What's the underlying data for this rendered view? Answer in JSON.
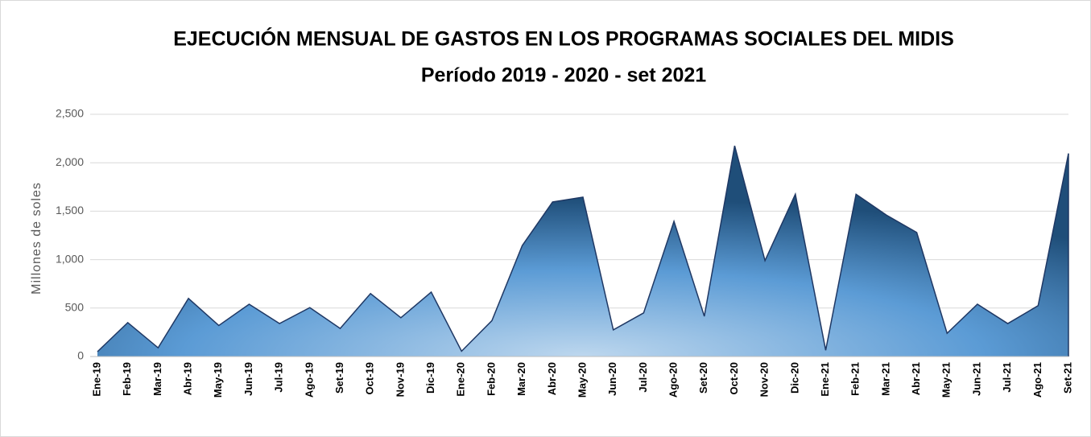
{
  "chart_data": {
    "type": "area",
    "title": "EJECUCIÓN MENSUAL DE GASTOS EN LOS PROGRAMAS SOCIALES DEL MIDIS",
    "subtitle": "Período 2019 - 2020 - set 2021",
    "ylabel": "Millones de soles",
    "categories": [
      "Ene-19",
      "Feb-19",
      "Mar-19",
      "Abr-19",
      "May-19",
      "Jun-19",
      "Jul-19",
      "Ago-19",
      "Set-19",
      "Oct-19",
      "Nov-19",
      "Dic-19",
      "Ene-20",
      "Feb-20",
      "Mar-20",
      "Abr-20",
      "May-20",
      "Jun-20",
      "Jul-20",
      "Ago-20",
      "Set-20",
      "Oct-20",
      "Nov-20",
      "Dic-20",
      "Ene-21",
      "Feb-21",
      "Mar-21",
      "Abr-21",
      "May-21",
      "Jun-21",
      "Jul-21",
      "Ago-21",
      "Set-21"
    ],
    "values": [
      50,
      350,
      90,
      600,
      320,
      540,
      340,
      505,
      290,
      650,
      400,
      665,
      55,
      370,
      1145,
      1595,
      1645,
      275,
      450,
      1395,
      415,
      2175,
      990,
      1675,
      65,
      1675,
      1460,
      1280,
      240,
      540,
      340,
      525,
      2095
    ],
    "color": "#3f78b8",
    "ylim": [
      0,
      2500
    ],
    "yticks": [
      0,
      500,
      {
        "value": 1000,
        "label": "1,000"
      },
      {
        "value": 1500,
        "label": "1,500"
      },
      {
        "value": 2000,
        "label": "2,000"
      },
      {
        "value": 2500,
        "label": "2,500"
      }
    ],
    "grid": true
  }
}
